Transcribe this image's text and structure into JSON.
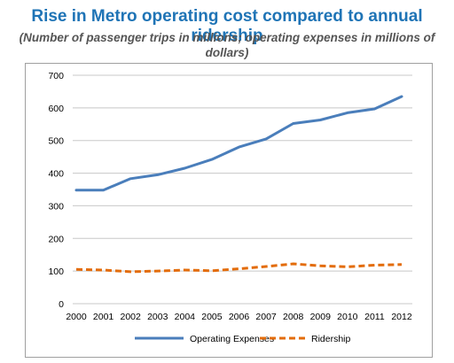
{
  "chart_data": {
    "type": "line",
    "title": "Rise in Metro operating cost compared to annual ridership",
    "subtitle": "(Number of passenger trips in millions; operating expenses in millions of dollars)",
    "x": [
      "2000",
      "2001",
      "2002",
      "2003",
      "2004",
      "2005",
      "2006",
      "2007",
      "2008",
      "2009",
      "2010",
      "2011",
      "2012"
    ],
    "ylim": [
      0,
      700
    ],
    "yticks": [
      0,
      100,
      200,
      300,
      400,
      500,
      600,
      700
    ],
    "grid": true,
    "legend": "bottom",
    "series": [
      {
        "name": "Operating Expenses",
        "color": "#4a7ebb",
        "style": "solid",
        "values": [
          348,
          348,
          383,
          395,
          415,
          442,
          480,
          505,
          552,
          563,
          585,
          597,
          635
        ]
      },
      {
        "name": "Ridership",
        "color": "#e36c0a",
        "style": "dashed",
        "values": [
          105,
          103,
          98,
          100,
          103,
          101,
          107,
          114,
          122,
          116,
          113,
          118,
          120
        ]
      }
    ]
  }
}
